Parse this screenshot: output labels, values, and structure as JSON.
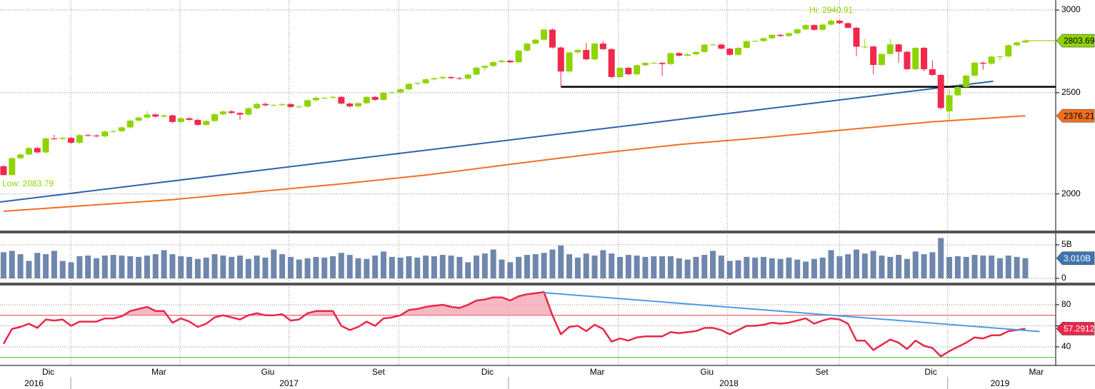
{
  "chart_data": [
    {
      "type": "candlestick",
      "log": true,
      "ylim": [
        1845,
        3067
      ],
      "yticks": [
        2000,
        2500,
        3000
      ],
      "xlim": [
        -0.42,
        124.6
      ],
      "xticks": [
        7.96,
        20.9,
        33.8,
        46.8,
        59.8,
        72.8,
        85.7,
        99,
        111.8
      ],
      "up_color": "#8fd400",
      "down_color": "#f0284c",
      "open": [
        2126,
        2085,
        2164,
        2182,
        2213,
        2192,
        2260,
        2258,
        2263,
        2239,
        2277,
        2275,
        2271,
        2295,
        2297,
        2316,
        2351,
        2367,
        2383,
        2372,
        2378,
        2344,
        2363,
        2355,
        2329,
        2349,
        2384,
        2399,
        2391,
        2382,
        2416,
        2439,
        2432,
        2433,
        2438,
        2423,
        2425,
        2459,
        2472,
        2472,
        2477,
        2441,
        2426,
        2443,
        2477,
        2461,
        2500,
        2502,
        2519,
        2549,
        2553,
        2575,
        2581,
        2588,
        2582,
        2579,
        2602,
        2642,
        2652,
        2675,
        2683,
        2674,
        2743,
        2786,
        2810,
        2873,
        2762,
        2620,
        2732,
        2747,
        2691,
        2786,
        2752,
        2588,
        2641,
        2604,
        2656,
        2670,
        2670,
        2663,
        2728,
        2713,
        2721,
        2735,
        2779,
        2780,
        2755,
        2718,
        2760,
        2801,
        2802,
        2819,
        2840,
        2833,
        2850,
        2875,
        2902,
        2872,
        2905,
        2930,
        2914,
        2885,
        2767,
        2768,
        2658,
        2723,
        2781,
        2736,
        2633,
        2760,
        2633,
        2600,
        2400,
        2486,
        2532,
        2596,
        2671,
        2665,
        2707,
        2708,
        2776,
        2793
      ],
      "high": [
        2132,
        2170,
        2188,
        2219,
        2219,
        2266,
        2278,
        2269,
        2269,
        2283,
        2283,
        2281,
        2301,
        2303,
        2322,
        2357,
        2373,
        2401,
        2389,
        2384,
        2384,
        2369,
        2369,
        2361,
        2355,
        2390,
        2405,
        2405,
        2397,
        2422,
        2445,
        2446,
        2440,
        2444,
        2444,
        2431,
        2465,
        2478,
        2478,
        2483,
        2483,
        2447,
        2449,
        2483,
        2483,
        2506,
        2508,
        2525,
        2555,
        2559,
        2581,
        2587,
        2594,
        2594,
        2588,
        2608,
        2648,
        2658,
        2681,
        2689,
        2689,
        2749,
        2792,
        2816,
        2879,
        2879,
        2768,
        2738,
        2753,
        2789,
        2792,
        2802,
        2758,
        2647,
        2647,
        2662,
        2676,
        2676,
        2676,
        2734,
        2734,
        2727,
        2741,
        2785,
        2786,
        2786,
        2761,
        2766,
        2807,
        2808,
        2825,
        2846,
        2846,
        2856,
        2881,
        2908,
        2908,
        2911,
        2940.91,
        2936,
        2920,
        2891,
        2816,
        2774,
        2729,
        2815,
        2787,
        2742,
        2766,
        2766,
        2685,
        2606,
        2520,
        2538,
        2602,
        2677,
        2677,
        2713,
        2714,
        2782,
        2799,
        2813
      ],
      "low": [
        2083.79,
        2084,
        2158,
        2176,
        2186,
        2186,
        2252,
        2252,
        2233,
        2233,
        2269,
        2265,
        2265,
        2289,
        2291,
        2310,
        2345,
        2361,
        2366,
        2366,
        2338,
        2338,
        2349,
        2323,
        2323,
        2343,
        2378,
        2385,
        2353,
        2376,
        2410,
        2426,
        2426,
        2427,
        2417,
        2417,
        2419,
        2453,
        2466,
        2466,
        2435,
        2420,
        2420,
        2437,
        2455,
        2455,
        2494,
        2496,
        2513,
        2543,
        2547,
        2569,
        2575,
        2576,
        2573,
        2573,
        2596,
        2624,
        2646,
        2669,
        2668,
        2668,
        2737,
        2780,
        2804,
        2756,
        2532.69,
        2614,
        2726,
        2685,
        2685,
        2746,
        2582,
        2582,
        2598,
        2598,
        2650,
        2664,
        2594,
        2657,
        2707,
        2707,
        2715,
        2729,
        2774,
        2749,
        2712,
        2712,
        2754,
        2796,
        2796,
        2813,
        2827,
        2827,
        2844,
        2869,
        2866,
        2866,
        2899,
        2908,
        2879,
        2710,
        2755,
        2603,
        2652,
        2717,
        2670,
        2627,
        2627,
        2621,
        2594,
        2409,
        2346.58,
        2480,
        2526,
        2590,
        2630,
        2659,
        2681,
        2702,
        2770,
        2789
      ],
      "close": [
        2085,
        2164,
        2182,
        2213,
        2192,
        2260,
        2258,
        2263,
        2239,
        2277,
        2275,
        2271,
        2295,
        2297,
        2316,
        2351,
        2367,
        2383,
        2372,
        2378,
        2344,
        2363,
        2355,
        2329,
        2349,
        2384,
        2399,
        2391,
        2382,
        2416,
        2439,
        2432,
        2433,
        2438,
        2423,
        2425,
        2459,
        2472,
        2472,
        2477,
        2441,
        2426,
        2443,
        2477,
        2461,
        2500,
        2502,
        2519,
        2549,
        2553,
        2575,
        2581,
        2588,
        2582,
        2579,
        2602,
        2642,
        2652,
        2675,
        2683,
        2674,
        2743,
        2786,
        2810,
        2873,
        2762,
        2620,
        2732,
        2747,
        2691,
        2786,
        2752,
        2588,
        2641,
        2604,
        2656,
        2670,
        2670,
        2663,
        2728,
        2713,
        2721,
        2735,
        2779,
        2780,
        2755,
        2718,
        2760,
        2801,
        2802,
        2819,
        2840,
        2833,
        2850,
        2875,
        2902,
        2872,
        2905,
        2930,
        2914,
        2885,
        2767,
        2768,
        2658,
        2723,
        2781,
        2736,
        2633,
        2760,
        2633,
        2600,
        2417,
        2486,
        2532,
        2596,
        2671,
        2665,
        2707,
        2708,
        2776,
        2793,
        2803.69
      ],
      "high_label": "Hi: 2940.91",
      "low_label": "Low: 2083.79",
      "label_color": "#8fd400",
      "last_line_color": "#a0b000",
      "ma": {
        "x": [
          0,
          10,
          20,
          30,
          40,
          50,
          60,
          70,
          80,
          90,
          100,
          110,
          121
        ],
        "values": [
          1925,
          1950,
          1975,
          2010,
          2045,
          2085,
          2135,
          2185,
          2230,
          2265,
          2305,
          2345,
          2376.21
        ],
        "color": "#f07020"
      },
      "trendline": {
        "x": [
          -0.42,
          117.2
        ],
        "values": [
          1965,
          2564
        ],
        "color": "#2f62a8"
      },
      "support": {
        "x_start": 66,
        "value": 2532.69,
        "color": "#000000"
      }
    },
    {
      "type": "bar",
      "ylim": [
        -0.53,
        6.38
      ],
      "yticks": [
        0,
        {
          "value": 5,
          "label": "5B"
        }
      ],
      "color": "#6f87ad",
      "values": [
        3.9,
        4.1,
        3.6,
        2.6,
        3.8,
        3.6,
        4.1,
        2.6,
        2.4,
        3.3,
        3.4,
        3.0,
        3.4,
        3.5,
        3.4,
        3.3,
        3.2,
        3.4,
        3.6,
        4.2,
        3.6,
        3.3,
        3.2,
        2.9,
        3.1,
        3.6,
        3.4,
        3.2,
        3.4,
        2.9,
        3.4,
        3.1,
        4.3,
        3.6,
        3.2,
        2.8,
        3.0,
        3.2,
        3.1,
        3.3,
        3.8,
        3.5,
        3.0,
        2.9,
        3.4,
        4.0,
        3.2,
        3.1,
        3.3,
        3.1,
        3.4,
        3.3,
        3.5,
        3.4,
        3.2,
        2.4,
        3.4,
        3.7,
        4.3,
        2.8,
        2.4,
        3.2,
        3.5,
        3.6,
        3.8,
        4.3,
        4.9,
        3.6,
        3.1,
        3.7,
        3.4,
        4.2,
        3.7,
        3.2,
        3.5,
        3.4,
        3.2,
        3.3,
        3.3,
        3.3,
        3.0,
        2.8,
        3.2,
        3.5,
        4.1,
        3.4,
        2.6,
        2.7,
        3.2,
        3.1,
        3.2,
        3.0,
        2.9,
        3.1,
        2.8,
        2.5,
        2.9,
        3.1,
        4.2,
        3.3,
        3.6,
        4.3,
        3.7,
        4.1,
        3.4,
        3.2,
        3.5,
        2.9,
        4.0,
        3.6,
        3.9,
        6.0,
        3.2,
        3.3,
        3.2,
        3.5,
        3.4,
        3.4,
        3.0,
        3.4,
        3.2,
        3.01
      ],
      "current_label": {
        "value": 3.01,
        "label": "3.010B"
      },
      "label_color": "#3f74b0"
    },
    {
      "type": "line",
      "ylim": [
        22.4,
        96.9
      ],
      "yticks": [
        40,
        60,
        80
      ],
      "color": "#e8284a",
      "fill_color": "#f4a6b3",
      "values": [
        43,
        57,
        59,
        62,
        58,
        66,
        65,
        66,
        60,
        64,
        64,
        64,
        67,
        67,
        69,
        74,
        76,
        78,
        74,
        74,
        63,
        67,
        64,
        59,
        62,
        68,
        70,
        68,
        66,
        70,
        72,
        70,
        70,
        71,
        65,
        66,
        72,
        74,
        74,
        74,
        60,
        56,
        59,
        64,
        60,
        67,
        68,
        70,
        75,
        76,
        78,
        79,
        80,
        78,
        77,
        80,
        84,
        85,
        87,
        87,
        84,
        88,
        90,
        91,
        92,
        70,
        52,
        59,
        60,
        55,
        61,
        57,
        45,
        48,
        46,
        49,
        50,
        50,
        50,
        54,
        53,
        54,
        55,
        58,
        58,
        56,
        52,
        56,
        60,
        60,
        61,
        63,
        62,
        63,
        65,
        67,
        62,
        65,
        67,
        66,
        62,
        46,
        46,
        37,
        42,
        47,
        44,
        38,
        46,
        41,
        39,
        31,
        36,
        40,
        44,
        49,
        48,
        51,
        51,
        55,
        56,
        57.2912
      ],
      "levels": [
        {
          "value": 70,
          "color": "#d83a3a"
        },
        {
          "value": 30,
          "color": "#33bb33"
        }
      ],
      "trendline": {
        "x": [
          63.9,
          122.7
        ],
        "values": [
          91.5,
          54.6
        ],
        "color": "#4d9be6"
      },
      "month_labels": [
        {
          "value": 5.3,
          "label": "Dic"
        },
        {
          "value": 18.4,
          "label": "Mar"
        },
        {
          "value": 31.3,
          "label": "Giu"
        },
        {
          "value": 44.4,
          "label": "Set"
        },
        {
          "value": 57.3,
          "label": "Dic"
        },
        {
          "value": 70.3,
          "label": "Mar"
        },
        {
          "value": 83.3,
          "label": "Giu"
        },
        {
          "value": 96.9,
          "label": "Set"
        },
        {
          "value": 109.8,
          "label": "Dic"
        },
        {
          "value": 122.3,
          "label": "Mar"
        }
      ],
      "year_labels": [
        {
          "value": 3.6,
          "label": "2016"
        },
        {
          "value": 33.8,
          "label": "2017"
        },
        {
          "value": 85.9,
          "label": "2018"
        },
        {
          "value": 118,
          "label": "2019"
        }
      ]
    }
  ]
}
